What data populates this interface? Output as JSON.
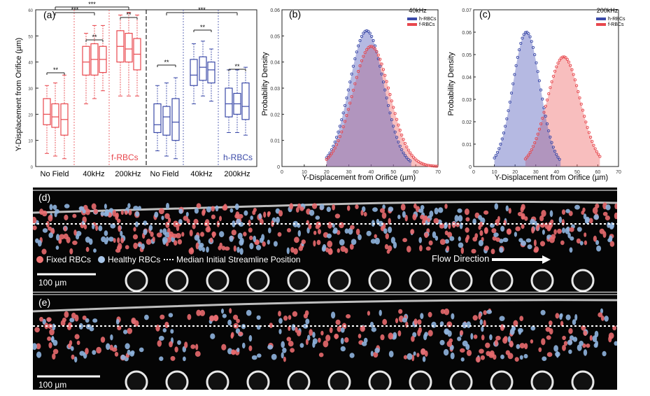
{
  "panel_a": {
    "label": "(a)",
    "ylabel": "Y-Displacement from Orifice (µm)",
    "yticks": [
      "0",
      "10",
      "20",
      "30",
      "40",
      "50",
      "60"
    ],
    "groups": [
      "No Field",
      "40kHz",
      "200kHz",
      "No Field",
      "40kHz",
      "200kHz"
    ],
    "frbc_text": "f-RBCs",
    "hrbc_text": "h-RBCs",
    "sig_inner": [
      "**",
      "**",
      "**",
      "**",
      "**",
      "**"
    ],
    "sig_outer": [
      "***",
      "***",
      "***"
    ],
    "colors": {
      "f": "#e8474d",
      "h": "#3b4aa8"
    }
  },
  "panel_b": {
    "label": "(b)",
    "legend_title": "40kHz",
    "legend": [
      "h-RBCs",
      "f-RBCs"
    ],
    "ylabel": "Probability Density",
    "xlabel": "Y-Displacement from Orifice (µm)",
    "yticks": [
      "0",
      "0.01",
      "0.02",
      "0.03",
      "0.04",
      "0.05",
      "0.06"
    ],
    "xticks": [
      "0",
      "10",
      "20",
      "30",
      "40",
      "50",
      "60",
      "70"
    ]
  },
  "panel_c": {
    "label": "(c)",
    "legend_title": "200kHz",
    "legend": [
      "h-RBCs",
      "f-RBCs"
    ],
    "ylabel": "Probability Density",
    "xlabel": "Y-Displacement from Orifice (µm)",
    "yticks": [
      "0",
      "0.01",
      "0.02",
      "0.03",
      "0.04",
      "0.05",
      "0.06",
      "0.07"
    ],
    "xticks": [
      "0",
      "10",
      "20",
      "30",
      "40",
      "50",
      "60",
      "70"
    ]
  },
  "panel_d": {
    "label": "(d)",
    "legend_fixed": "Fixed RBCs",
    "legend_healthy": "Healthy RBCs",
    "legend_median": "Median Initial Streamline Position",
    "flow": "Flow Direction",
    "scale": "100 µm"
  },
  "panel_e": {
    "label": "(e)",
    "scale": "100 µm"
  },
  "chart_data": [
    {
      "type": "box",
      "panel": "(a)",
      "ylabel": "Y-Displacement from Orifice (µm)",
      "ylim": [
        0,
        60
      ],
      "categories": [
        "No Field",
        "40kHz",
        "200kHz",
        "No Field",
        "40kHz",
        "200kHz"
      ],
      "series": [
        {
          "name": "f-RBCs",
          "groups": [
            {
              "category": "No Field",
              "boxes": [
                {
                  "q1": 16,
                  "med": 20,
                  "q3": 26,
                  "lo": 5,
                  "hi": 31
                },
                {
                  "q1": 15,
                  "med": 19,
                  "q3": 24,
                  "lo": 4,
                  "hi": 32
                },
                {
                  "q1": 12,
                  "med": 18,
                  "q3": 24,
                  "lo": 3,
                  "hi": 35
                }
              ]
            },
            {
              "category": "40kHz",
              "boxes": [
                {
                  "q1": 35,
                  "med": 40,
                  "q3": 46,
                  "lo": 24,
                  "hi": 51
                },
                {
                  "q1": 35,
                  "med": 41,
                  "q3": 47,
                  "lo": 26,
                  "hi": 54
                },
                {
                  "q1": 36,
                  "med": 41,
                  "q3": 46,
                  "lo": 29,
                  "hi": 54
                }
              ]
            },
            {
              "category": "200kHz",
              "boxes": [
                {
                  "q1": 40,
                  "med": 46,
                  "q3": 52,
                  "lo": 27,
                  "hi": 58
                },
                {
                  "q1": 40,
                  "med": 45,
                  "q3": 51,
                  "lo": 27,
                  "hi": 59
                },
                {
                  "q1": 37,
                  "med": 43,
                  "q3": 49,
                  "lo": 27,
                  "hi": 58
                }
              ]
            }
          ]
        },
        {
          "name": "h-RBCs",
          "groups": [
            {
              "category": "No Field",
              "boxes": [
                {
                  "q1": 13,
                  "med": 16,
                  "q3": 24,
                  "lo": 6,
                  "hi": 31
                },
                {
                  "q1": 12,
                  "med": 19,
                  "q3": 23,
                  "lo": 4,
                  "hi": 32
                },
                {
                  "q1": 10,
                  "med": 17,
                  "q3": 26,
                  "lo": 3,
                  "hi": 34
                }
              ]
            },
            {
              "category": "40kHz",
              "boxes": [
                {
                  "q1": 31,
                  "med": 35,
                  "q3": 41,
                  "lo": 24,
                  "hi": 47
                },
                {
                  "q1": 33,
                  "med": 38,
                  "q3": 42,
                  "lo": 27,
                  "hi": 48
                },
                {
                  "q1": 32,
                  "med": 37,
                  "q3": 40,
                  "lo": 25,
                  "hi": 45
                }
              ]
            },
            {
              "category": "200kHz",
              "boxes": [
                {
                  "q1": 19,
                  "med": 24,
                  "q3": 30,
                  "lo": 13,
                  "hi": 37
                },
                {
                  "q1": 20,
                  "med": 24,
                  "q3": 28,
                  "lo": 13,
                  "hi": 37
                },
                {
                  "q1": 18,
                  "med": 23,
                  "q3": 32,
                  "lo": 12,
                  "hi": 38
                }
              ]
            }
          ]
        }
      ]
    },
    {
      "type": "area",
      "panel": "(b)",
      "title": "40kHz",
      "xlabel": "Y-Displacement from Orifice (µm)",
      "ylabel": "Probability Density",
      "xlim": [
        0,
        70
      ],
      "ylim": [
        0,
        0.06
      ],
      "series": [
        {
          "name": "h-RBCs",
          "mean": 38,
          "sd": 7.7,
          "peak": 0.052,
          "x_range": [
            20,
            58
          ]
        },
        {
          "name": "f-RBCs",
          "mean": 40,
          "sd": 8.4,
          "peak": 0.046,
          "x_range": [
            20,
            70
          ]
        }
      ]
    },
    {
      "type": "area",
      "panel": "(c)",
      "title": "200kHz",
      "xlabel": "Y-Displacement from Orifice (µm)",
      "ylabel": "Probability Density",
      "xlim": [
        0,
        70
      ],
      "ylim": [
        0,
        0.07
      ],
      "series": [
        {
          "name": "h-RBCs",
          "mean": 25.5,
          "sd": 6.6,
          "peak": 0.06,
          "x_range": [
            10,
            42
          ]
        },
        {
          "name": "f-RBCs",
          "mean": 43.5,
          "sd": 8.0,
          "peak": 0.049,
          "x_range": [
            25,
            61
          ]
        }
      ]
    }
  ]
}
